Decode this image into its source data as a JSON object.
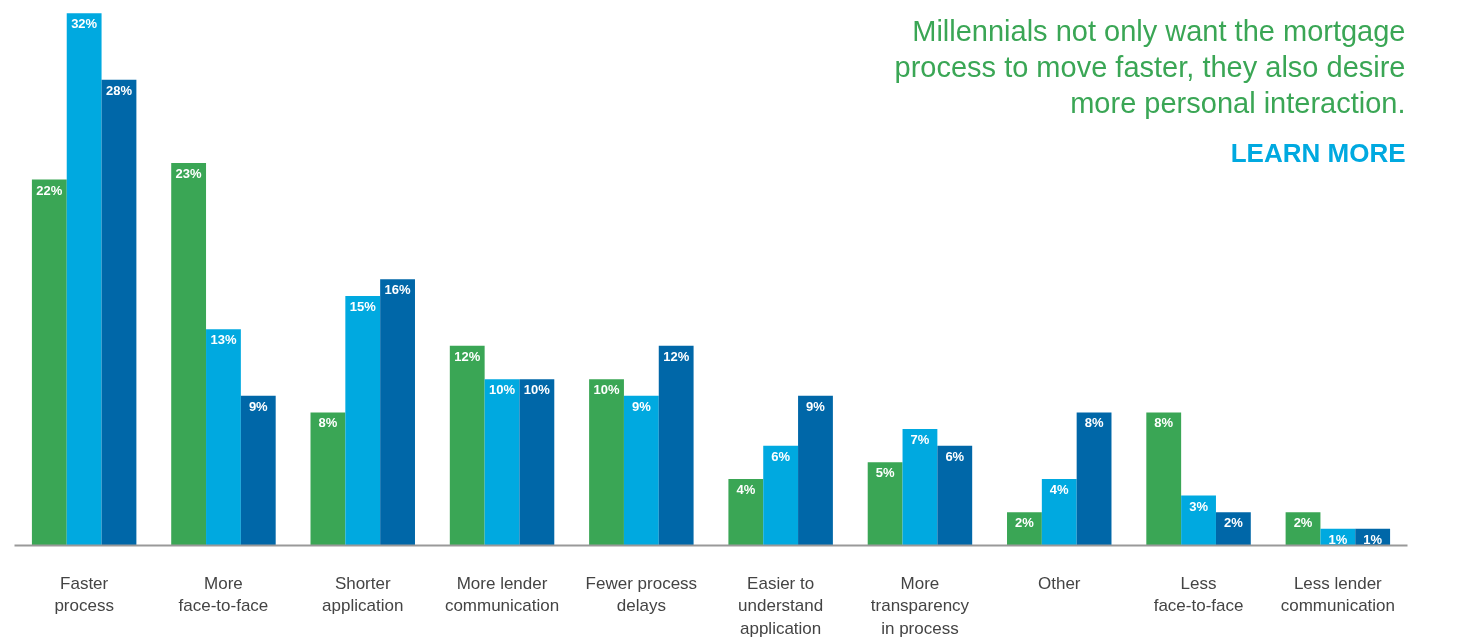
{
  "chart_data": {
    "type": "bar",
    "title": "Millennials not only want the mortgage process to move faster, they also desire more personal interaction.",
    "annotations": [
      "LEARN MORE"
    ],
    "categories": [
      "Faster process",
      "More face-to-face",
      "Shorter application",
      "More lender communication",
      "Fewer process delays",
      "Easier to understand application",
      "More transparency in process",
      "Other",
      "Less face-to-face",
      "Less lender communication"
    ],
    "series": [
      {
        "color": "#3aa655",
        "values": [
          22,
          23,
          8,
          12,
          10,
          4,
          5,
          2,
          8,
          2
        ],
        "value_labels": [
          "22%",
          "23%",
          "8%",
          "12%",
          "10%",
          "4%",
          "5%",
          "2%",
          "8%",
          "2%"
        ]
      },
      {
        "color": "#00a9e0",
        "values": [
          32,
          13,
          15,
          10,
          9,
          6,
          7,
          4,
          3,
          1
        ],
        "value_labels": [
          "32%",
          "13%",
          "15%",
          "10%",
          "9%",
          "6%",
          "7%",
          "4%",
          "3%",
          "1%"
        ]
      },
      {
        "color": "#0067a8",
        "values": [
          28,
          9,
          16,
          10,
          12,
          9,
          6,
          8,
          2,
          1
        ],
        "value_labels": [
          "28%",
          "9%",
          "16%",
          "10%",
          "12%",
          "9%",
          "6%",
          "8%",
          "2%",
          "1%"
        ]
      }
    ],
    "grid": false
  }
}
